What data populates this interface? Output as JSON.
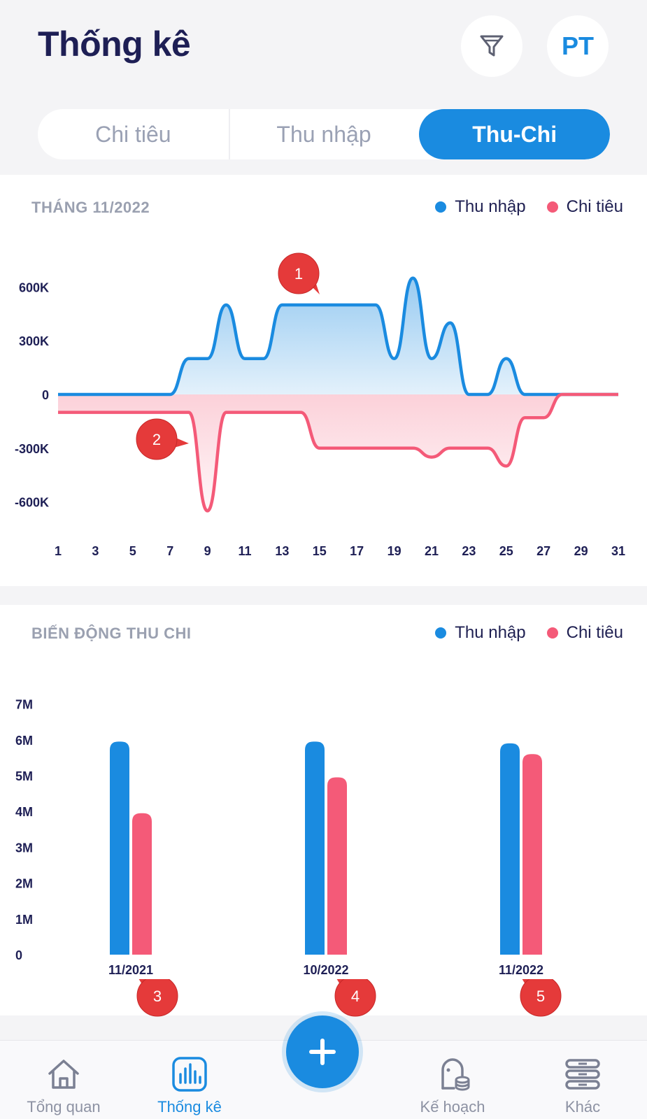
{
  "header": {
    "title": "Thống kê",
    "avatar_initials": "PT",
    "filter_icon": "filter-icon"
  },
  "tabs": [
    {
      "label": "Chi tiêu",
      "active": false
    },
    {
      "label": "Thu nhập",
      "active": false
    },
    {
      "label": "Thu-Chi",
      "active": true
    }
  ],
  "colors": {
    "income": "#1a8be0",
    "expense": "#f45a78",
    "title": "#1e1f55"
  },
  "monthly_card": {
    "title": "THÁNG 11/2022",
    "legend": [
      "Thu nhập",
      "Chi tiêu"
    ]
  },
  "trend_card": {
    "title": "BIẾN ĐỘNG THU CHI",
    "legend": [
      "Thu nhập",
      "Chi tiêu"
    ]
  },
  "badges": [
    "1",
    "2",
    "3",
    "4",
    "5"
  ],
  "chart_data": [
    {
      "type": "area",
      "title": "THÁNG 11/2022",
      "xlabel": "",
      "ylabel": "",
      "x_ticks": [
        "1",
        "3",
        "5",
        "7",
        "9",
        "11",
        "13",
        "15",
        "17",
        "19",
        "21",
        "23",
        "25",
        "27",
        "29",
        "31"
      ],
      "y_ticks": [
        "600K",
        "300K",
        "0",
        "-300K",
        "-600K"
      ],
      "xlim": [
        1,
        31
      ],
      "ylim": [
        -700,
        700
      ],
      "legend_position": "top-right",
      "series": [
        {
          "name": "Thu nhập",
          "x": [
            1,
            2,
            3,
            4,
            5,
            6,
            7,
            8,
            9,
            10,
            11,
            12,
            13,
            14,
            15,
            16,
            17,
            18,
            19,
            20,
            21,
            22,
            23,
            24,
            25,
            26,
            27,
            28,
            29,
            30,
            31
          ],
          "values": [
            0,
            0,
            0,
            0,
            0,
            0,
            0,
            200,
            200,
            500,
            200,
            200,
            500,
            500,
            500,
            500,
            500,
            500,
            200,
            650,
            200,
            400,
            0,
            0,
            200,
            0,
            0,
            0,
            0,
            0,
            0
          ]
        },
        {
          "name": "Chi tiêu",
          "x": [
            1,
            2,
            3,
            4,
            5,
            6,
            7,
            8,
            9,
            10,
            11,
            12,
            13,
            14,
            15,
            16,
            17,
            18,
            19,
            20,
            21,
            22,
            23,
            24,
            25,
            26,
            27,
            28,
            29,
            30,
            31
          ],
          "values": [
            -100,
            -100,
            -100,
            -100,
            -100,
            -100,
            -100,
            -100,
            -650,
            -100,
            -100,
            -100,
            -100,
            -100,
            -300,
            -300,
            -300,
            -300,
            -300,
            -300,
            -350,
            -300,
            -300,
            -300,
            -400,
            -130,
            -130,
            0,
            0,
            0,
            0
          ]
        }
      ]
    },
    {
      "type": "bar",
      "title": "BIẾN ĐỘNG THU CHI",
      "xlabel": "",
      "ylabel": "",
      "categories": [
        "11/2021",
        "10/2022",
        "11/2022"
      ],
      "y_ticks": [
        "7M",
        "6M",
        "5M",
        "4M",
        "3M",
        "2M",
        "1M",
        "0"
      ],
      "ylim": [
        0,
        7
      ],
      "legend_position": "top-right",
      "series": [
        {
          "name": "Thu nhập",
          "values": [
            5.95,
            5.95,
            5.9
          ]
        },
        {
          "name": "Chi tiêu",
          "values": [
            3.95,
            4.95,
            5.6
          ]
        }
      ]
    }
  ],
  "bottom_nav": [
    {
      "label": "Tổng quan",
      "icon": "home-icon",
      "active": false
    },
    {
      "label": "Thống kê",
      "icon": "chart-icon",
      "active": true
    },
    {
      "label": "Kế hoạch",
      "icon": "piggy-bank-icon",
      "active": false
    },
    {
      "label": "Khác",
      "icon": "more-icon",
      "active": false
    }
  ],
  "fab": {
    "icon": "plus-icon"
  }
}
